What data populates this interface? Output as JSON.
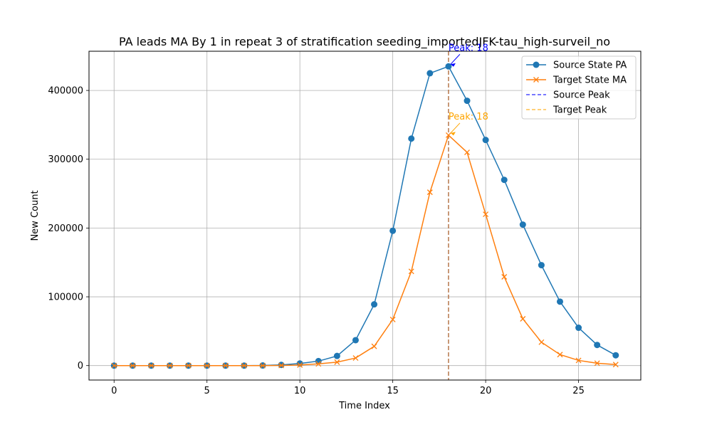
{
  "chart_data": {
    "type": "line",
    "title": "PA leads MA By 1 in repeat 3 of stratification seeding_importedJFK-tau_high-surveil_no",
    "xlabel": "Time Index",
    "ylabel": "New Count",
    "xlim": [
      -1.35,
      28.35
    ],
    "ylim": [
      -21000,
      457000
    ],
    "xticks": [
      0,
      5,
      10,
      15,
      20,
      25
    ],
    "yticks": [
      0,
      100000,
      200000,
      300000,
      400000
    ],
    "grid": true,
    "legend_position": "top-right",
    "x": [
      0,
      1,
      2,
      3,
      4,
      5,
      6,
      7,
      8,
      9,
      10,
      11,
      12,
      13,
      14,
      15,
      16,
      17,
      18,
      19,
      20,
      21,
      22,
      23,
      24,
      25,
      26,
      27
    ],
    "series": [
      {
        "name": "Source State PA",
        "marker": "circle",
        "color": "#1f77b4",
        "values": [
          0,
          0,
          0,
          0,
          0,
          0,
          0,
          0,
          200,
          1000,
          3000,
          6500,
          14000,
          37000,
          89000,
          196000,
          330000,
          425000,
          435000,
          385000,
          328000,
          270000,
          205000,
          146000,
          93000,
          55000,
          30000,
          15000
        ]
      },
      {
        "name": "Target State MA",
        "marker": "x",
        "color": "#ff7f0e",
        "values": [
          0,
          0,
          0,
          0,
          0,
          0,
          0,
          0,
          0,
          200,
          800,
          2500,
          5000,
          11000,
          28000,
          67000,
          137000,
          252000,
          335000,
          310000,
          220000,
          129000,
          68000,
          34000,
          16000,
          7500,
          3500,
          1500
        ]
      }
    ],
    "peak_lines": [
      {
        "name": "Source Peak",
        "x": 18,
        "color": "#0000ff",
        "style": "dashed"
      },
      {
        "name": "Target Peak",
        "x": 18,
        "color": "#ffa500",
        "style": "dashed"
      }
    ],
    "annotations": [
      {
        "text": "Peak: 18",
        "x": 18,
        "y": 435000,
        "color": "#0000ff"
      },
      {
        "text": "Peak: 18",
        "x": 18,
        "y": 335000,
        "color": "#ffa500"
      }
    ]
  }
}
